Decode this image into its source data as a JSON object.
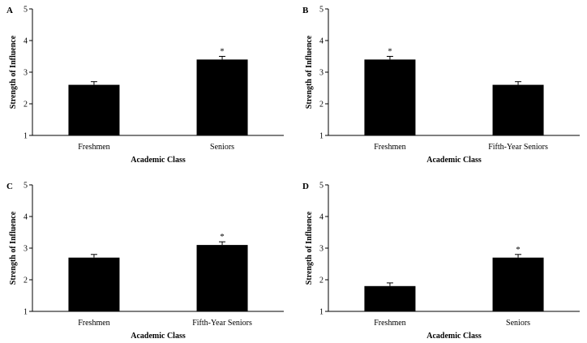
{
  "chart_data": [
    {
      "type": "bar",
      "panel": "A",
      "categories": [
        "Freshmen",
        "Seniors"
      ],
      "values": [
        2.6,
        3.4
      ],
      "errors": [
        0.1,
        0.1
      ],
      "significance": [
        "",
        "*"
      ],
      "xlabel": "Academic Class",
      "ylabel": "Strength of Influence",
      "ylim": [
        1,
        5
      ],
      "yticks": [
        1,
        2,
        3,
        4,
        5
      ],
      "grid": false
    },
    {
      "type": "bar",
      "panel": "B",
      "categories": [
        "Freshmen",
        "Fifth-Year Seniors"
      ],
      "values": [
        3.4,
        2.6
      ],
      "errors": [
        0.1,
        0.1
      ],
      "significance": [
        "*",
        ""
      ],
      "xlabel": "Academic Class",
      "ylabel": "Strength of Influence",
      "ylim": [
        1,
        5
      ],
      "yticks": [
        1,
        2,
        3,
        4,
        5
      ],
      "grid": false
    },
    {
      "type": "bar",
      "panel": "C",
      "categories": [
        "Freshmen",
        "Fifth-Year Seniors"
      ],
      "values": [
        2.7,
        3.1
      ],
      "errors": [
        0.1,
        0.1
      ],
      "significance": [
        "",
        "*"
      ],
      "xlabel": "Academic Class",
      "ylabel": "Strength of Influence",
      "ylim": [
        1,
        5
      ],
      "yticks": [
        1,
        2,
        3,
        4,
        5
      ],
      "grid": false
    },
    {
      "type": "bar",
      "panel": "D",
      "categories": [
        "Freshmen",
        "Seniors"
      ],
      "values": [
        1.8,
        2.7
      ],
      "errors": [
        0.1,
        0.1
      ],
      "significance": [
        "",
        "*"
      ],
      "xlabel": "Academic Class",
      "ylabel": "Strength of Influence",
      "ylim": [
        1,
        5
      ],
      "yticks": [
        1,
        2,
        3,
        4,
        5
      ],
      "grid": false
    }
  ],
  "colors": {
    "bar": "#000000",
    "axis": "#000000"
  }
}
